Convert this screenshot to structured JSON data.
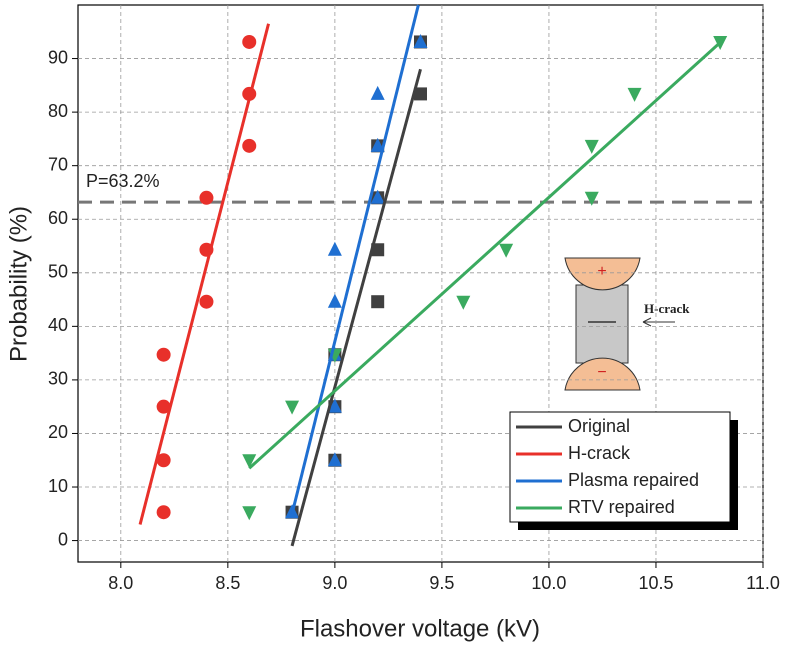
{
  "chart_data": {
    "type": "scatter",
    "x_label": "Flashover voltage (kV)",
    "y_label": "Probability (%)",
    "xlim": [
      7.8,
      11.0
    ],
    "ylim": [
      -4,
      100
    ],
    "xticks": [
      {
        "value": 8,
        "label": "8.0"
      },
      {
        "value": 8.5,
        "label": "8.5"
      },
      {
        "value": 9,
        "label": "9.0"
      },
      {
        "value": 9.5,
        "label": "9.5"
      },
      {
        "value": 10,
        "label": "10.0"
      },
      {
        "value": 10.5,
        "label": "10.5"
      },
      {
        "value": 11,
        "label": "11.0"
      }
    ],
    "yticks": [
      0,
      10,
      20,
      30,
      40,
      50,
      60,
      70,
      80,
      90
    ],
    "grid": true,
    "reference_line": {
      "value": 63.2,
      "label": "P=63.2%"
    },
    "inset": {
      "label": "H-crack",
      "plus": "+",
      "minus": "−"
    },
    "legend": "lower right",
    "series": [
      {
        "name": "Original",
        "color": "#404040",
        "marker": "square",
        "x": [
          8.8,
          9.0,
          9.0,
          9.0,
          9.2,
          9.2,
          9.2,
          9.2,
          9.4,
          9.4
        ],
        "values": [
          5.3,
          15,
          25,
          34.7,
          44.6,
          54.3,
          64,
          73.7,
          83.4,
          93.1
        ],
        "fit_x": [
          8.8,
          9.4
        ],
        "fit_y": [
          -1,
          88
        ]
      },
      {
        "name": "H-crack",
        "color": "#e8302a",
        "marker": "circle",
        "x": [
          8.2,
          8.2,
          8.2,
          8.2,
          8.4,
          8.4,
          8.4,
          8.6,
          8.6,
          8.6
        ],
        "values": [
          5.3,
          15,
          25,
          34.7,
          44.6,
          54.3,
          64,
          73.7,
          83.4,
          93.1
        ],
        "fit_x": [
          8.09,
          8.69
        ],
        "fit_y": [
          3,
          96.5
        ]
      },
      {
        "name": "Plasma repaired",
        "color": "#1f6fd1",
        "marker": "triangle-up",
        "x": [
          8.8,
          9.0,
          9.0,
          9.0,
          9.0,
          9.0,
          9.2,
          9.2,
          9.2,
          9.4
        ],
        "values": [
          5.3,
          15,
          25,
          34.7,
          44.6,
          54.3,
          64,
          73.7,
          83.4,
          93.1
        ],
        "fit_x": [
          8.8,
          9.39
        ],
        "fit_y": [
          5,
          100
        ]
      },
      {
        "name": "RTV repaired",
        "color": "#3aaa5f",
        "marker": "triangle-down",
        "x": [
          8.6,
          8.6,
          8.8,
          9.0,
          9.6,
          9.8,
          10.2,
          10.2,
          10.4,
          10.8
        ],
        "values": [
          5.3,
          15,
          25,
          34.7,
          44.6,
          54.3,
          64,
          73.7,
          83.4,
          93.1
        ],
        "fit_x": [
          8.6,
          10.8
        ],
        "fit_y": [
          13.5,
          93
        ]
      }
    ]
  }
}
